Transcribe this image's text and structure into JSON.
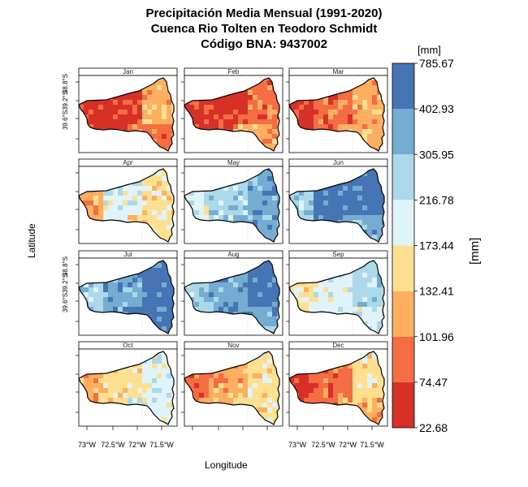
{
  "title": {
    "line1": "Precipitación Media Mensual (1991-2020)",
    "line2": "Cuenca Rio Tolten en Teodoro Schmidt",
    "line3": "Código BNA: 9437002"
  },
  "axes": {
    "xlabel": "Longitude",
    "ylabel": "Latitude",
    "x_ticks": [
      "73°W",
      "72.5°W",
      "72°W",
      "71.5°W"
    ],
    "y_ticks": [
      "38.8°S",
      "39.2°S",
      "39.6°S"
    ]
  },
  "legend": {
    "unit_top": "[mm]",
    "unit_side": "[mm]",
    "breaks": [
      "22.68",
      "74.47",
      "101.96",
      "132.41",
      "173.44",
      "216.78",
      "305.95",
      "402.93",
      "785.67"
    ],
    "colors": [
      "#d73027",
      "#f46d43",
      "#fdae61",
      "#fee090",
      "#e0f3f8",
      "#abd9e9",
      "#74add1",
      "#4575b4"
    ]
  },
  "chart_data": {
    "type": "heatmap",
    "title": "Precipitación Media Mensual (1991-2020)",
    "subtitle": "Cuenca Rio Tolten en Teodoro Schmidt — Código BNA: 9437002",
    "xlabel": "Longitude",
    "ylabel": "Latitude",
    "unit": "[mm]",
    "panels": [
      "Jan",
      "Feb",
      "Mar",
      "Apr",
      "May",
      "Jun",
      "Jul",
      "Aug",
      "Sep",
      "Oct",
      "Nov",
      "Dec"
    ],
    "class_breaks_mm": [
      22.68,
      74.47,
      101.96,
      132.41,
      173.44,
      216.78,
      305.95,
      402.93,
      785.67
    ],
    "x_range_deg": [
      -73.2,
      -71.4
    ],
    "y_range_deg": [
      -39.7,
      -38.6
    ],
    "grid": false,
    "legend_position": "right",
    "dominant_class_per_panel": {
      "Jan": "22.68-74.47",
      "Feb": "22.68-74.47",
      "Mar": "74.47-101.96",
      "Apr": "173.44-216.78",
      "May": "216.78-305.95",
      "Jun": "402.93-785.67",
      "Jul": "305.95-402.93",
      "Aug": "305.95-402.93",
      "Sep": "173.44-216.78",
      "Oct": "132.41-173.44",
      "Nov": "101.96-132.41",
      "Dec": "74.47-101.96"
    }
  }
}
